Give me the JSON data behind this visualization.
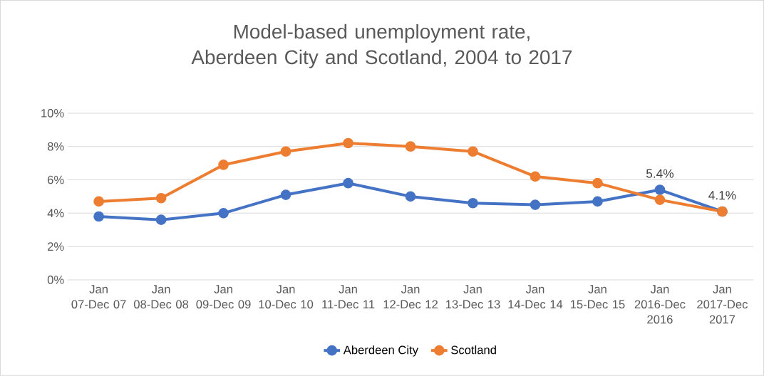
{
  "chart_data": {
    "type": "line",
    "title": "Model-based unemployment rate, Aberdeen City and Scotland, 2004 to 2017",
    "categories": [
      "Jan 07-Dec 07",
      "Jan 08-Dec 08",
      "Jan 09-Dec 09",
      "Jan 10-Dec 10",
      "Jan 11-Dec 11",
      "Jan 12-Dec 12",
      "Jan 13-Dec 13",
      "Jan 14-Dec 14",
      "Jan 15-Dec 15",
      "Jan 2016-Dec 2016",
      "Jan 2017-Dec 2017"
    ],
    "series": [
      {
        "name": "Aberdeen City",
        "color": "#4472c4",
        "values": [
          3.8,
          3.6,
          4.0,
          5.1,
          5.8,
          5.0,
          4.6,
          4.5,
          4.7,
          5.4,
          4.1
        ],
        "value_labels": [
          null,
          null,
          null,
          null,
          null,
          null,
          null,
          null,
          null,
          "5.4%",
          "4.1%"
        ]
      },
      {
        "name": "Scotland",
        "color": "#ed7d31",
        "values": [
          4.7,
          4.9,
          6.9,
          7.7,
          8.2,
          8.0,
          7.7,
          6.2,
          5.8,
          4.8,
          4.1
        ]
      }
    ],
    "ylim": [
      0,
      10
    ],
    "yticks": [
      {
        "value": 0,
        "label": "0%"
      },
      {
        "value": 2,
        "label": "2%"
      },
      {
        "value": 4,
        "label": "4%"
      },
      {
        "value": 6,
        "label": "6%"
      },
      {
        "value": 8,
        "label": "8%"
      },
      {
        "value": 10,
        "label": "10%"
      }
    ],
    "grid": "y",
    "legend": "bottom",
    "marker": "circle",
    "line_style": "solid"
  }
}
